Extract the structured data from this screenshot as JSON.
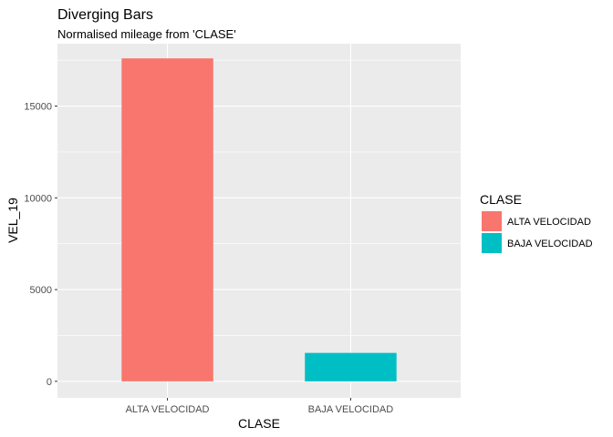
{
  "chart_data": {
    "type": "bar",
    "title": "Diverging Bars",
    "subtitle": "Normalised mileage from 'CLASE'",
    "xlabel": "CLASE",
    "ylabel": "VEL_19",
    "categories": [
      "ALTA VELOCIDAD",
      "BAJA VELOCIDAD"
    ],
    "values": [
      17600,
      1550
    ],
    "colors": [
      "#F8766D",
      "#00BFC4"
    ],
    "ylim": [
      -900,
      18400
    ],
    "yticks": [
      0,
      5000,
      10000,
      15000
    ],
    "ytick_labels": [
      "0",
      "5000",
      "10000",
      "15000"
    ],
    "grid": true,
    "panel_background": "#EBEBEB",
    "legend": {
      "title": "CLASE",
      "position": "right",
      "entries": [
        {
          "label": "ALTA VELOCIDAD",
          "color": "#F8766D"
        },
        {
          "label": "BAJA VELOCIDAD",
          "color": "#00BFC4"
        }
      ]
    }
  }
}
